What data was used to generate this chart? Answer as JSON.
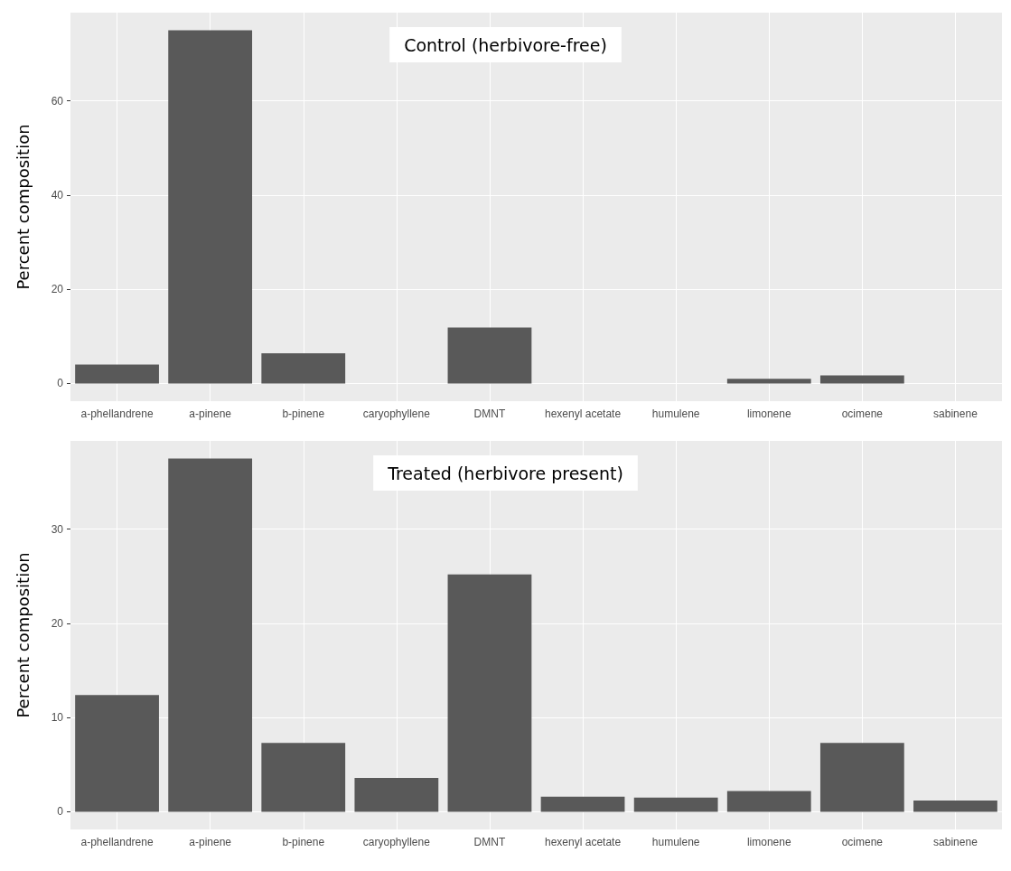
{
  "chart_data": [
    {
      "type": "bar",
      "title": "Control (herbivore-free)",
      "ylabel": "Percent composition",
      "categories": [
        "a-phellandrene",
        "a-pinene",
        "b-pinene",
        "caryophyllene",
        "DMNT",
        "hexenyl acetate",
        "humulene",
        "limonene",
        "ocimene",
        "sabinene"
      ],
      "values": [
        4.0,
        75.0,
        6.4,
        0,
        11.9,
        0,
        0,
        1.0,
        1.7,
        0
      ],
      "color": "#595959",
      "ylim": [
        -3.75,
        78.75
      ],
      "yticks": [
        0,
        20,
        40,
        60
      ],
      "grid": true
    },
    {
      "type": "bar",
      "title": "Treated (herbivore present)",
      "ylabel": "Percent composition",
      "categories": [
        "a-phellandrene",
        "a-pinene",
        "b-pinene",
        "caryophyllene",
        "DMNT",
        "hexenyl acetate",
        "humulene",
        "limonene",
        "ocimene",
        "sabinene"
      ],
      "values": [
        12.4,
        37.5,
        7.3,
        3.6,
        25.2,
        1.6,
        1.5,
        2.2,
        7.3,
        1.2
      ],
      "color": "#595959",
      "ylim": [
        -1.875,
        39.375
      ],
      "yticks": [
        0,
        10,
        20,
        30
      ],
      "grid": true
    }
  ]
}
